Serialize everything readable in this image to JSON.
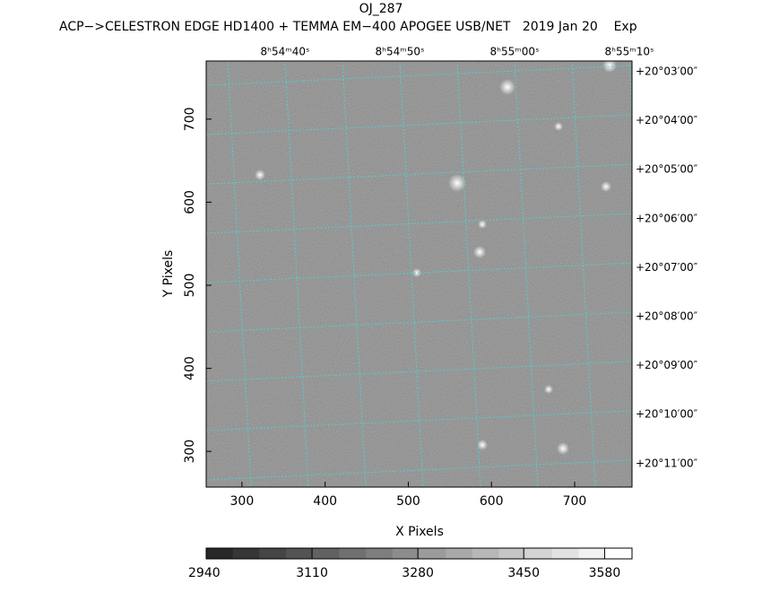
{
  "chart_data": {
    "type": "image",
    "title": "OJ_287",
    "subtitle": "ACP−>CELESTRON EDGE HD1400 + TEMMA EM−400 APOGEE USB/NET   2019 Jan 20    Exp",
    "xlabel": "X Pixels",
    "ylabel": "Y Pixels",
    "xlim": [
      257,
      769
    ],
    "ylim": [
      257,
      770
    ],
    "xticks": [
      300,
      400,
      500,
      600,
      700
    ],
    "yticks": [
      300,
      400,
      500,
      600,
      700
    ],
    "ra_ticks": [
      "8ʰ54ᵐ40ˢ",
      "8ʰ54ᵐ50ˢ",
      "8ʰ55ᵐ00ˢ",
      "8ʰ55ᵐ10ˢ"
    ],
    "dec_ticks": [
      "+20°03′00″",
      "+20°04′00″",
      "+20°05′00″",
      "+20°06′00″",
      "+20°07′00″",
      "+20°08′00″",
      "+20°09′00″",
      "+20°10′00″",
      "+20°11′00″"
    ],
    "colorbar": {
      "clim": [
        2940,
        3624
      ],
      "ticks": [
        2940,
        3110,
        3280,
        3450,
        3580
      ]
    },
    "grid_color": "#4fd0d0"
  }
}
